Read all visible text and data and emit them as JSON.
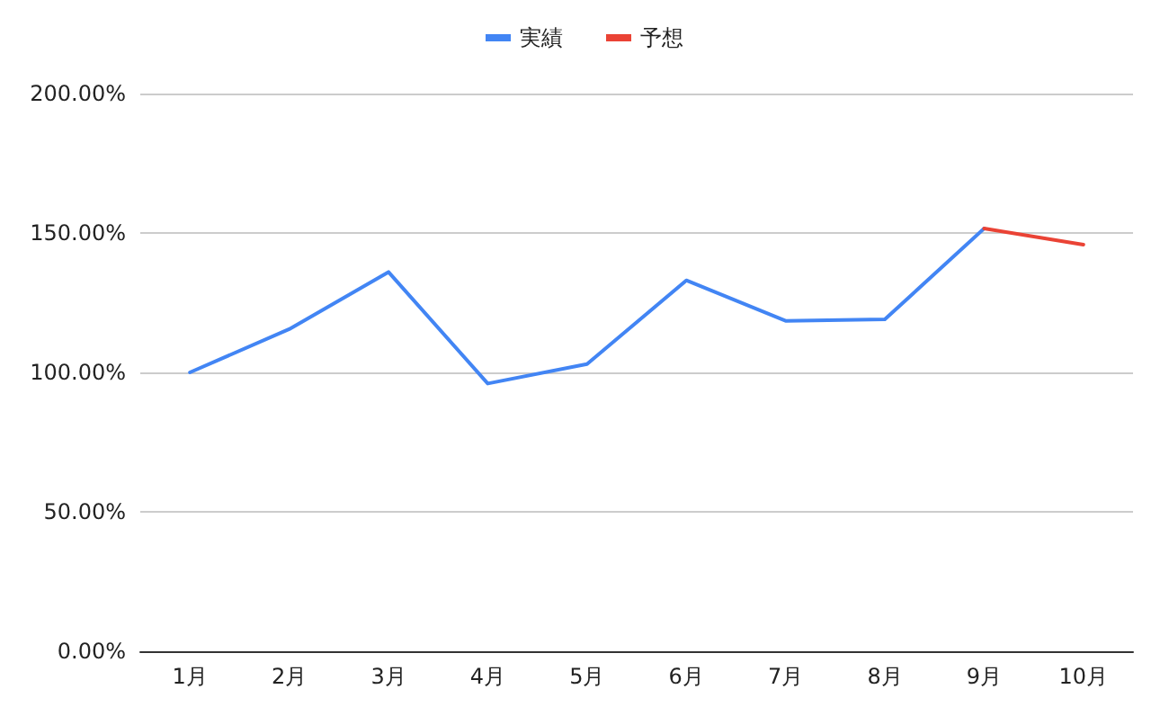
{
  "chart_data": {
    "type": "line",
    "categories": [
      "1月",
      "2月",
      "3月",
      "4月",
      "5月",
      "6月",
      "7月",
      "8月",
      "9月",
      "10月"
    ],
    "series": [
      {
        "name": "実績",
        "color": "#4285f4",
        "values": [
          100,
          115.5,
          136,
          96,
          103,
          133,
          118.5,
          119,
          151.6,
          null
        ]
      },
      {
        "name": "予想",
        "color": "#ea4335",
        "values": [
          null,
          null,
          null,
          null,
          null,
          null,
          null,
          null,
          151.6,
          145.8
        ]
      }
    ],
    "ylim": [
      0,
      200
    ],
    "yticks": [
      {
        "value": 0,
        "label": "0.00%"
      },
      {
        "value": 50,
        "label": "50.00%"
      },
      {
        "value": 100,
        "label": "100.00%"
      },
      {
        "value": 150,
        "label": "150.00%"
      },
      {
        "value": 200,
        "label": "200.00%"
      }
    ],
    "grid": "y",
    "legend": "top",
    "marker": "none",
    "line_style": "solid"
  }
}
